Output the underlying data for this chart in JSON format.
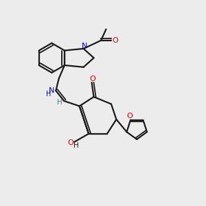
{
  "bg_color": "#ececec",
  "bond_color": "#1a1a1a",
  "N_color": "#0000cc",
  "O_color": "#dd0000",
  "teal_color": "#3a8080",
  "line_width": 1.6,
  "figsize": [
    3.0,
    3.0
  ],
  "dpi": 100,
  "xlim": [
    0,
    10
  ],
  "ylim": [
    0,
    10
  ]
}
